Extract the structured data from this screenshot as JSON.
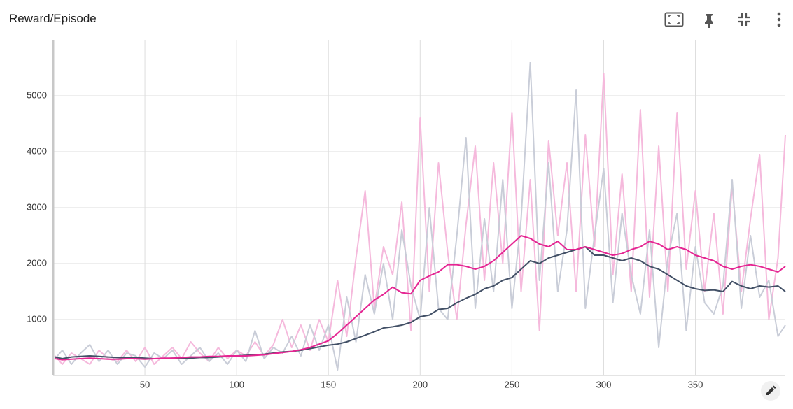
{
  "title": "Reward/Episode",
  "chart_data": {
    "type": "line",
    "x": [
      1,
      5,
      10,
      15,
      20,
      25,
      30,
      35,
      40,
      45,
      50,
      55,
      60,
      65,
      70,
      75,
      80,
      85,
      90,
      95,
      100,
      105,
      110,
      115,
      120,
      125,
      130,
      135,
      140,
      145,
      150,
      155,
      160,
      165,
      170,
      175,
      180,
      185,
      190,
      195,
      200,
      205,
      210,
      215,
      220,
      225,
      230,
      235,
      240,
      245,
      250,
      255,
      260,
      265,
      270,
      275,
      280,
      285,
      290,
      295,
      300,
      305,
      310,
      315,
      320,
      325,
      330,
      335,
      340,
      345,
      350,
      355,
      360,
      365,
      370,
      375,
      380,
      385,
      390,
      395,
      399
    ],
    "series": [
      {
        "color": "#f5b9dc",
        "values": [
          350,
          200,
          400,
          300,
          200,
          450,
          300,
          250,
          450,
          250,
          500,
          200,
          350,
          500,
          300,
          600,
          400,
          250,
          500,
          300,
          450,
          350,
          600,
          350,
          550,
          1000,
          500,
          900,
          450,
          1000,
          600,
          1700,
          700,
          2100,
          3300,
          1200,
          2300,
          1800,
          3100,
          800,
          4600,
          1500,
          3800,
          2200,
          1000,
          2700,
          4100,
          1700,
          3800,
          2000,
          4700,
          1500,
          3500,
          800,
          4200,
          2500,
          3800,
          1500,
          4300,
          2300,
          5400,
          1800,
          3600,
          1500,
          4750,
          1400,
          4100,
          1500,
          4700,
          1900,
          3300,
          1500,
          2900,
          1100,
          3400,
          1500,
          2800,
          3950,
          1000,
          2100,
          4300
        ]
      },
      {
        "color": "#c9cdd8",
        "values": [
          300,
          450,
          200,
          400,
          550,
          250,
          450,
          200,
          400,
          350,
          150,
          400,
          300,
          450,
          200,
          350,
          500,
          250,
          400,
          200,
          450,
          250,
          800,
          300,
          500,
          400,
          700,
          350,
          900,
          450,
          900,
          100,
          1400,
          600,
          1800,
          1100,
          2000,
          1000,
          2600,
          1600,
          1000,
          3000,
          1200,
          1000,
          2500,
          4250,
          1200,
          2800,
          1500,
          3500,
          1200,
          2800,
          5600,
          1700,
          3800,
          1500,
          2600,
          5100,
          1200,
          2500,
          3700,
          1300,
          2900,
          1800,
          1100,
          2600,
          500,
          2100,
          2900,
          800,
          2300,
          1300,
          1100,
          1600,
          3500,
          1200,
          2500,
          1400,
          1700,
          700,
          900
        ]
      },
      {
        "color": "#425066",
        "values": [
          330,
          300,
          330,
          340,
          350,
          340,
          330,
          320,
          320,
          320,
          310,
          300,
          300,
          310,
          300,
          310,
          320,
          320,
          330,
          340,
          350,
          360,
          370,
          380,
          400,
          420,
          430,
          450,
          480,
          510,
          540,
          560,
          600,
          660,
          720,
          780,
          850,
          870,
          900,
          950,
          1050,
          1080,
          1180,
          1200,
          1300,
          1380,
          1450,
          1550,
          1600,
          1700,
          1750,
          1900,
          2050,
          2000,
          2100,
          2150,
          2200,
          2250,
          2300,
          2150,
          2150,
          2100,
          2050,
          2100,
          2050,
          1950,
          1900,
          1800,
          1700,
          1600,
          1550,
          1520,
          1530,
          1500,
          1680,
          1600,
          1550,
          1600,
          1580,
          1600,
          1500
        ]
      },
      {
        "color": "#e52592",
        "values": [
          300,
          280,
          290,
          300,
          310,
          300,
          290,
          290,
          300,
          300,
          290,
          300,
          310,
          310,
          320,
          330,
          330,
          340,
          340,
          350,
          350,
          350,
          360,
          370,
          390,
          410,
          430,
          460,
          500,
          560,
          620,
          750,
          900,
          1050,
          1200,
          1350,
          1450,
          1580,
          1480,
          1460,
          1700,
          1780,
          1850,
          1980,
          1980,
          1950,
          1900,
          1950,
          2050,
          2200,
          2350,
          2500,
          2450,
          2350,
          2300,
          2400,
          2250,
          2250,
          2300,
          2250,
          2200,
          2150,
          2180,
          2250,
          2300,
          2400,
          2350,
          2250,
          2300,
          2250,
          2150,
          2100,
          2050,
          1950,
          1900,
          1950,
          1980,
          1950,
          1900,
          1850,
          1950
        ]
      }
    ],
    "xlim": [
      0,
      399
    ],
    "ylim": [
      0,
      6000
    ],
    "xticks": [
      50,
      100,
      150,
      200,
      250,
      300,
      350
    ],
    "yticks": [
      1000,
      2000,
      3000,
      4000,
      5000
    ],
    "grid": true
  }
}
